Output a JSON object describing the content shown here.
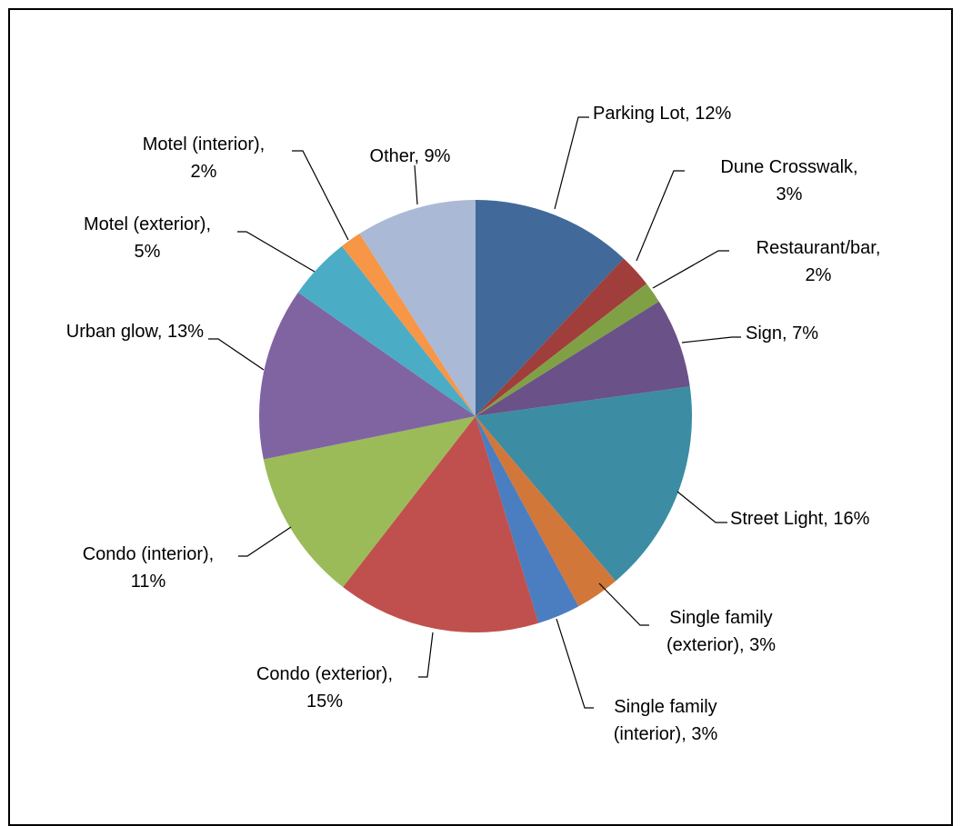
{
  "chart_data": {
    "type": "pie",
    "start_angle_deg": 0,
    "direction": "clockwise",
    "slices": [
      {
        "name": "Parking Lot",
        "value": 12,
        "label_lines": [
          "Parking Lot, 12%"
        ],
        "color": "#41699a"
      },
      {
        "name": "Dune Crosswalk",
        "value": 2.5,
        "label_lines": [
          "Dune Crosswalk,",
          "3%"
        ],
        "color": "#a03e3b"
      },
      {
        "name": "Restaurant/bar",
        "value": 1.6,
        "label_lines": [
          "Restaurant/bar,",
          "2%"
        ],
        "color": "#80a045"
      },
      {
        "name": "Sign",
        "value": 6.7,
        "label_lines": [
          "Sign, 7%"
        ],
        "color": "#6a5188"
      },
      {
        "name": "Street Light",
        "value": 16,
        "label_lines": [
          "Street Light, 16%"
        ],
        "color": "#3c8ca3"
      },
      {
        "name": "Single family (exterior)",
        "value": 3.3,
        "label_lines": [
          "Single family",
          "(exterior), 3%"
        ],
        "color": "#d2773a"
      },
      {
        "name": "Single family (interior)",
        "value": 3.2,
        "label_lines": [
          "Single family",
          "(interior), 3%"
        ],
        "color": "#4a7ec0"
      },
      {
        "name": "Condo (exterior)",
        "value": 15.2,
        "label_lines": [
          "Condo (exterior),",
          "15%"
        ],
        "color": "#c0504d"
      },
      {
        "name": "Condo (interior)",
        "value": 11.3,
        "label_lines": [
          "Condo (interior),",
          "11%"
        ],
        "color": "#9bbb59"
      },
      {
        "name": "Urban glow",
        "value": 12.9,
        "label_lines": [
          "Urban glow, 13%"
        ],
        "color": "#8064a2"
      },
      {
        "name": "Motel (exterior)",
        "value": 4.7,
        "label_lines": [
          "Motel (exterior),",
          "5%"
        ],
        "color": "#4bacc6"
      },
      {
        "name": "Motel (interior)",
        "value": 1.6,
        "label_lines": [
          "Motel (interior),",
          "2%"
        ],
        "color": "#f79646"
      },
      {
        "name": "Other",
        "value": 9,
        "label_lines": [
          "Other, 9%"
        ],
        "color": "#aab9d6"
      }
    ]
  }
}
